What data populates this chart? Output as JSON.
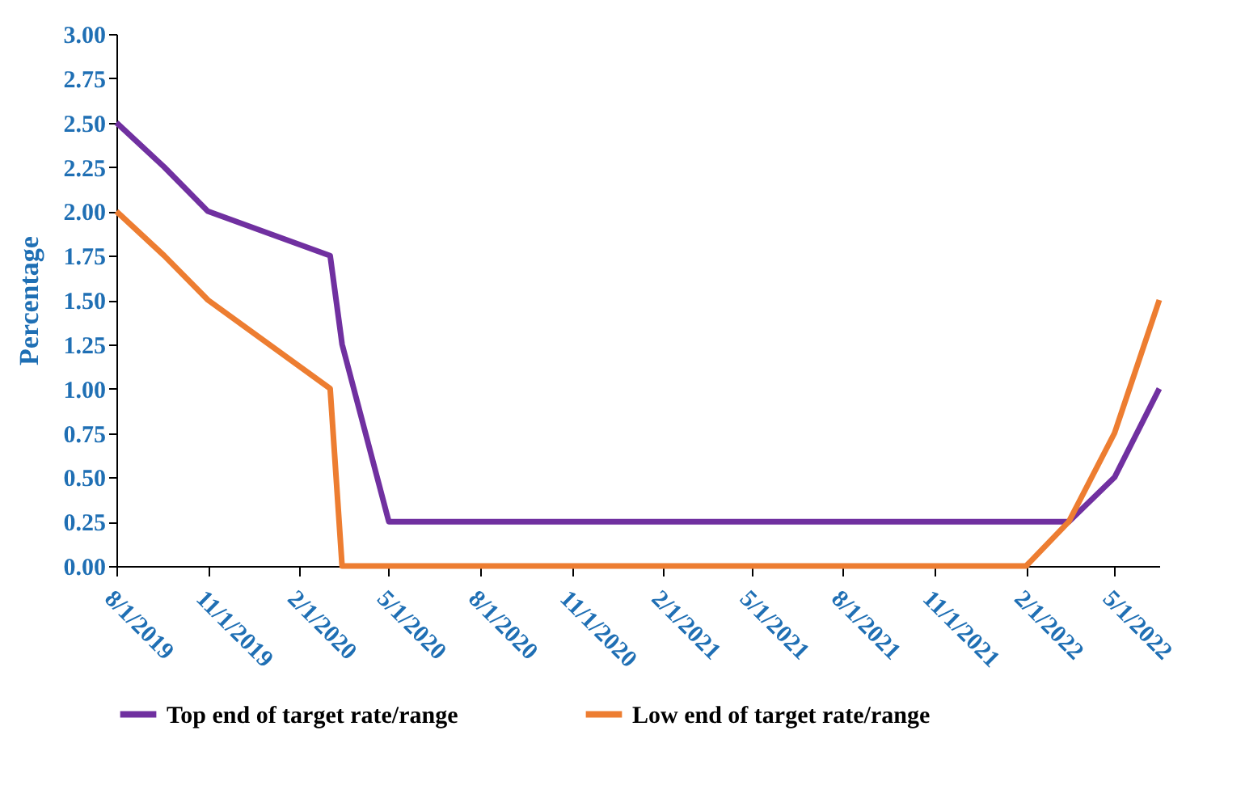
{
  "chart_data": {
    "type": "line",
    "ylabel": "Percentage",
    "xlim": [
      "2019-08-01",
      "2022-06-15"
    ],
    "ylim": [
      0,
      3
    ],
    "yticks": [
      {
        "value": 0,
        "label": "0.00"
      },
      {
        "value": 0.25,
        "label": "0.25"
      },
      {
        "value": 0.5,
        "label": "0.50"
      },
      {
        "value": 0.75,
        "label": "0.75"
      },
      {
        "value": 1,
        "label": "1.00"
      },
      {
        "value": 1.25,
        "label": "1.25"
      },
      {
        "value": 1.5,
        "label": "1.50"
      },
      {
        "value": 1.75,
        "label": "1.75"
      },
      {
        "value": 2,
        "label": "2.00"
      },
      {
        "value": 2.25,
        "label": "2.25"
      },
      {
        "value": 2.5,
        "label": "2.50"
      },
      {
        "value": 2.75,
        "label": "2.75"
      },
      {
        "value": 3,
        "label": "3.00"
      }
    ],
    "xticks": [
      {
        "value": "2019-08-01",
        "label": "8/1/2019"
      },
      {
        "value": "2019-11-01",
        "label": "11/1/2019"
      },
      {
        "value": "2020-02-01",
        "label": "2/1/2020"
      },
      {
        "value": "2020-05-01",
        "label": "5/1/2020"
      },
      {
        "value": "2020-08-01",
        "label": "8/1/2020"
      },
      {
        "value": "2020-11-01",
        "label": "11/1/2020"
      },
      {
        "value": "2021-02-01",
        "label": "2/1/2021"
      },
      {
        "value": "2021-05-01",
        "label": "5/1/2021"
      },
      {
        "value": "2021-08-01",
        "label": "8/1/2021"
      },
      {
        "value": "2021-11-01",
        "label": "11/1/2021"
      },
      {
        "value": "2022-02-01",
        "label": "2/1/2022"
      },
      {
        "value": "2022-05-01",
        "label": "5/1/2022"
      }
    ],
    "series": [
      {
        "name": "Top end of target rate/range",
        "color": "#7030a0",
        "x": [
          "2019-08-01",
          "2019-09-18",
          "2019-11-01",
          "2020-03-03",
          "2020-03-15",
          "2020-05-01",
          "2022-03-16",
          "2022-05-01",
          "2022-06-15"
        ],
        "values": [
          2.5,
          2.25,
          2,
          1.75,
          1.25,
          0.25,
          0.25,
          0.5,
          1
        ]
      },
      {
        "name": "Low end of target rate/range",
        "color": "#ed7d31",
        "x": [
          "2019-08-01",
          "2019-09-18",
          "2019-11-01",
          "2020-03-03",
          "2020-03-15",
          "2022-02-01",
          "2022-03-16",
          "2022-05-01",
          "2022-06-15"
        ],
        "values": [
          2,
          1.75,
          1.5,
          1,
          0,
          0,
          0.25,
          0.75,
          1.5
        ]
      }
    ],
    "grid": false,
    "legend": "bottom",
    "marker": "none",
    "line_style": "solid"
  }
}
